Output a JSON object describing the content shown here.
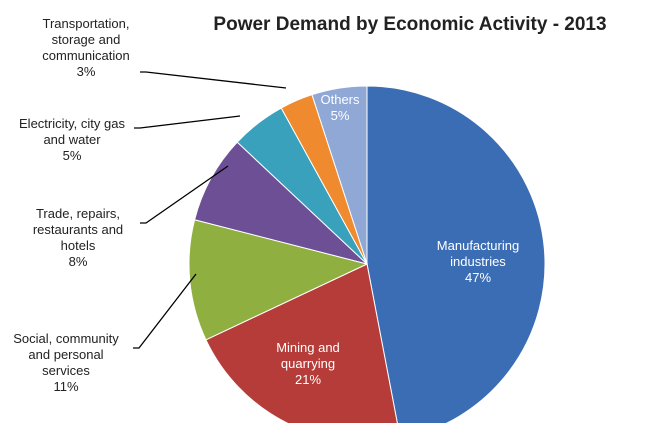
{
  "chart_data": {
    "type": "pie",
    "title": "Power Demand by Economic Activity - 2013",
    "categories": [
      "Manufacturing industries",
      "Mining and quarrying",
      "Social, community and personal services",
      "Trade, repairs, restaurants and hotels",
      "Electricity, city gas and water",
      "Transportation, storage and communication",
      "Others"
    ],
    "values": [
      47,
      21,
      11,
      8,
      5,
      3,
      5
    ],
    "value_labels": [
      "47%",
      "21%",
      "11%",
      "8%",
      "5%",
      "3%",
      "5%"
    ],
    "colors": [
      "#3b6db4",
      "#b53c38",
      "#8fb040",
      "#6c4f95",
      "#3aa1bc",
      "#ef8a2e",
      "#8fa8d6"
    ]
  }
}
